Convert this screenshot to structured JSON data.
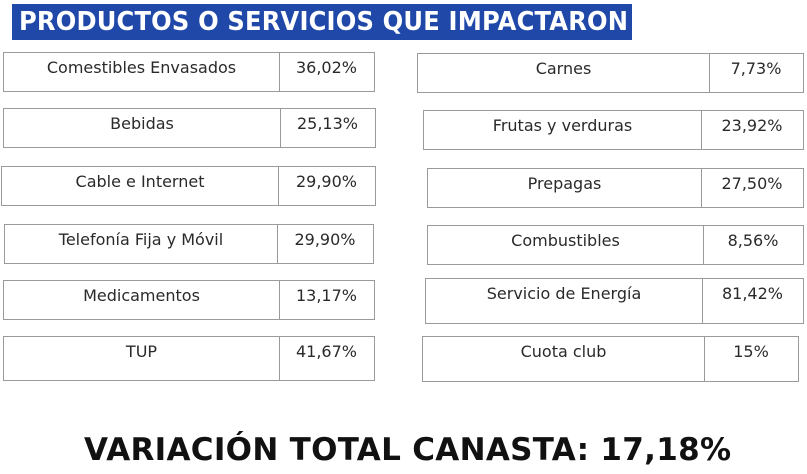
{
  "header": {
    "title": "PRODUCTOS O SERVICIOS QUE IMPACTARON"
  },
  "left_items": [
    {
      "name": "Comestibles Envasados",
      "value": "36,02%"
    },
    {
      "name": "Bebidas",
      "value": "25,13%"
    },
    {
      "name": "Cable e Internet",
      "value": "29,90%"
    },
    {
      "name": "Telefonía Fija y Móvil",
      "value": "29,90%"
    },
    {
      "name": "Medicamentos",
      "value": "13,17%"
    },
    {
      "name": "TUP",
      "value": "41,67%"
    }
  ],
  "right_items": [
    {
      "name": "Carnes",
      "value": "7,73%"
    },
    {
      "name": "Frutas y verduras",
      "value": "23,92%"
    },
    {
      "name": "Prepagas",
      "value": "27,50%"
    },
    {
      "name": "Combustibles",
      "value": "8,56%"
    },
    {
      "name": "Servicio de Energía",
      "value": "81,42%"
    },
    {
      "name": "Cuota club",
      "value": "15%"
    }
  ],
  "total": {
    "text": "VARIACIÓN TOTAL CANASTA: 17,18%"
  },
  "colors": {
    "header_bg": "#1f48a8",
    "header_text": "#ffffff",
    "border": "#9a9a9a"
  }
}
